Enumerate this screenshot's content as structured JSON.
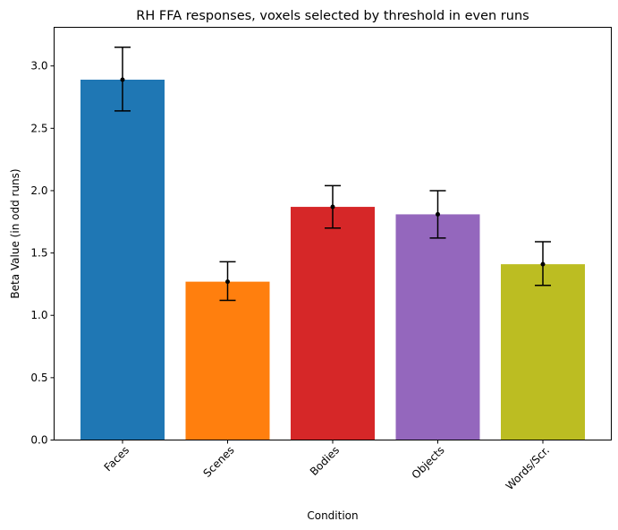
{
  "chart_data": {
    "type": "bar",
    "title": "RH FFA responses, voxels selected by threshold in even runs",
    "xlabel": "Condition",
    "ylabel": "Beta Value (in odd runs)",
    "categories": [
      "Faces",
      "Scenes",
      "Bodies",
      "Objects",
      "Words/Scr."
    ],
    "values": [
      2.89,
      1.27,
      1.87,
      1.81,
      1.41
    ],
    "error_low": [
      2.64,
      1.12,
      1.7,
      1.62,
      1.24
    ],
    "error_high": [
      3.15,
      1.43,
      2.04,
      2.0,
      1.59
    ],
    "bar_colors": [
      "#1f77b4",
      "#ff7f0e",
      "#d62728",
      "#9467bd",
      "#bcbd22"
    ],
    "ylim": [
      0,
      3.31
    ],
    "yticks": [
      "0.0",
      "0.5",
      "1.0",
      "1.5",
      "2.0",
      "2.5",
      "3.0"
    ],
    "ytick_values": [
      0,
      0.5,
      1.0,
      1.5,
      2.0,
      2.5,
      3.0
    ],
    "grid": false,
    "legend": "none"
  }
}
